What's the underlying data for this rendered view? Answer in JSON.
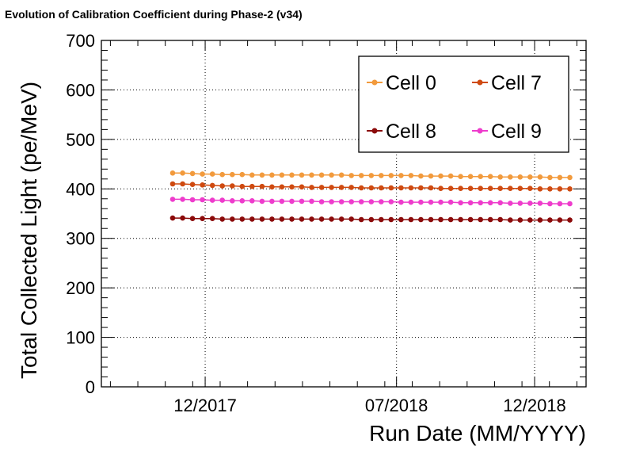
{
  "chart_data": {
    "type": "line",
    "title": "Evolution of Calibration Coefficient during Phase-2 (v34)",
    "xlabel": "Run Date (MM/YYYY)",
    "ylabel": "Total Collected Light (pe/MeV)",
    "x_ticks": [
      "12/2017",
      "07/2018",
      "12/2018"
    ],
    "x_tick_dates": [
      "2017-12-01",
      "2018-07-01",
      "2018-12-01"
    ],
    "xlim": [
      "2017-08-08",
      "2019-01-27"
    ],
    "ylim": [
      0,
      700
    ],
    "y_ticks": [
      0,
      100,
      200,
      300,
      400,
      500,
      600,
      700
    ],
    "grid": true,
    "legend": "top-right",
    "x": [
      "2017-10-26",
      "2017-11-06",
      "2017-11-17",
      "2017-11-28",
      "2017-12-09",
      "2017-12-20",
      "2017-12-31",
      "2018-01-11",
      "2018-01-22",
      "2018-02-02",
      "2018-02-13",
      "2018-02-24",
      "2018-03-07",
      "2018-03-18",
      "2018-03-29",
      "2018-04-09",
      "2018-04-20",
      "2018-05-01",
      "2018-05-12",
      "2018-05-23",
      "2018-06-03",
      "2018-06-14",
      "2018-06-25",
      "2018-07-06",
      "2018-07-17",
      "2018-07-28",
      "2018-08-08",
      "2018-08-19",
      "2018-08-30",
      "2018-09-10",
      "2018-09-21",
      "2018-10-02",
      "2018-10-13",
      "2018-10-24",
      "2018-11-04",
      "2018-11-15",
      "2018-11-26",
      "2018-12-07",
      "2018-12-18",
      "2018-12-29",
      "2019-01-09"
    ],
    "series": [
      {
        "name": "Cell 0",
        "color": "#f29a3c",
        "values": [
          432,
          432,
          431,
          430,
          430,
          429,
          429,
          429,
          428,
          428,
          428,
          428,
          428,
          428,
          428,
          428,
          428,
          428,
          427,
          427,
          427,
          427,
          427,
          427,
          427,
          426,
          426,
          426,
          426,
          425,
          425,
          425,
          425,
          424,
          424,
          424,
          424,
          424,
          423,
          423,
          423
        ]
      },
      {
        "name": "Cell 7",
        "color": "#cf4a10",
        "values": [
          410,
          410,
          409,
          408,
          407,
          406,
          406,
          405,
          405,
          405,
          404,
          404,
          404,
          404,
          403,
          403,
          403,
          403,
          403,
          402,
          402,
          402,
          402,
          402,
          402,
          402,
          402,
          401,
          401,
          401,
          401,
          401,
          401,
          401,
          401,
          401,
          401,
          400,
          400,
          400,
          400
        ]
      },
      {
        "name": "Cell 8",
        "color": "#8b0a0a",
        "values": [
          341,
          341,
          340,
          340,
          340,
          339,
          339,
          339,
          339,
          339,
          339,
          339,
          339,
          339,
          339,
          339,
          339,
          339,
          339,
          338,
          338,
          338,
          338,
          338,
          338,
          338,
          338,
          338,
          338,
          338,
          338,
          338,
          338,
          338,
          337,
          337,
          337,
          337,
          337,
          337,
          337
        ]
      },
      {
        "name": "Cell 9",
        "color": "#ee3ccc",
        "values": [
          379,
          379,
          378,
          378,
          377,
          377,
          376,
          376,
          376,
          375,
          375,
          375,
          375,
          375,
          375,
          374,
          374,
          374,
          374,
          374,
          374,
          374,
          374,
          373,
          373,
          373,
          373,
          373,
          373,
          372,
          372,
          372,
          372,
          372,
          371,
          371,
          371,
          371,
          370,
          370,
          370
        ]
      }
    ]
  }
}
